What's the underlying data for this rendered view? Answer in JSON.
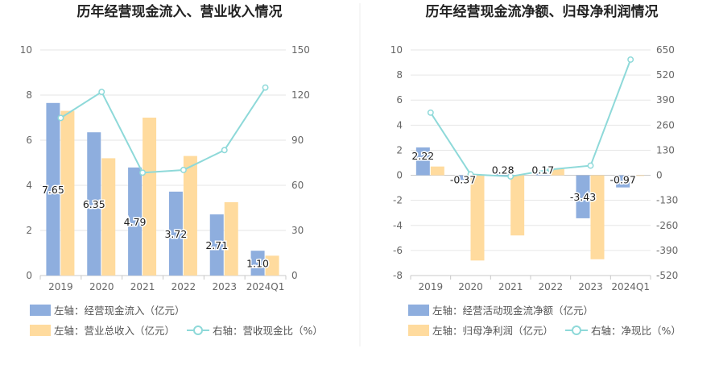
{
  "chart_data": [
    {
      "type": "bar",
      "title": "历年经营现金流入、营业收入情况",
      "categories": [
        "2019",
        "2020",
        "2021",
        "2022",
        "2023",
        "2024Q1"
      ],
      "y_left": {
        "ticks": [
          "0",
          "2",
          "4",
          "6",
          "8",
          "10"
        ],
        "ylim": [
          0,
          10
        ]
      },
      "y_right": {
        "ticks": [
          "0",
          "30",
          "60",
          "90",
          "120",
          "150"
        ],
        "ylim": [
          0,
          150
        ]
      },
      "series": [
        {
          "name": "左轴：经营现金流入（亿元）",
          "kind": "bar",
          "axis": "left",
          "color": "#8eaede",
          "values": [
            7.65,
            6.35,
            4.79,
            3.72,
            2.71,
            1.1
          ],
          "labels": [
            "7.65",
            "6.35",
            "4.79",
            "3.72",
            "2.71",
            "1.10"
          ]
        },
        {
          "name": "左轴：营业总收入（亿元）",
          "kind": "bar",
          "axis": "left",
          "color": "#ffdb9e",
          "values": [
            7.3,
            5.2,
            7.0,
            5.3,
            3.25,
            0.88
          ]
        },
        {
          "name": "右轴：营收现金比（%）",
          "kind": "line",
          "axis": "right",
          "color": "#8ed9d9",
          "values": [
            104.8,
            122.1,
            68.4,
            70.2,
            83.4,
            125.0
          ]
        }
      ]
    },
    {
      "type": "bar",
      "title": "历年经营现金流净额、归母净利润情况",
      "categories": [
        "2019",
        "2020",
        "2021",
        "2022",
        "2023",
        "2024Q1"
      ],
      "y_left": {
        "ticks": [
          "-8",
          "-6",
          "-4",
          "-2",
          "0",
          "2",
          "4",
          "6",
          "8",
          "10"
        ],
        "ylim": [
          -8,
          10
        ]
      },
      "y_right": {
        "ticks": [
          "-520",
          "-390",
          "-260",
          "-130",
          "0",
          "130",
          "260",
          "390",
          "520",
          "650"
        ],
        "ylim": [
          -520,
          650
        ]
      },
      "series": [
        {
          "name": "左轴：经营活动现金流净额（亿元）",
          "kind": "bar",
          "axis": "left",
          "color": "#8eaede",
          "values": [
            2.22,
            -0.37,
            0.28,
            0.17,
            -3.43,
            -0.97
          ],
          "labels": [
            "2.22",
            "-0.37",
            "0.28",
            "0.17",
            "-3.43",
            "-0.97"
          ]
        },
        {
          "name": "左轴：归母净利润（亿元）",
          "kind": "bar",
          "axis": "left",
          "color": "#ffdb9e",
          "values": [
            0.7,
            -6.8,
            -4.8,
            0.5,
            -6.7,
            -0.05
          ]
        },
        {
          "name": "右轴：净现比（%）",
          "kind": "line",
          "axis": "right",
          "color": "#8ed9d9",
          "values": [
            325,
            5,
            -6,
            30,
            50,
            600
          ]
        }
      ]
    }
  ]
}
